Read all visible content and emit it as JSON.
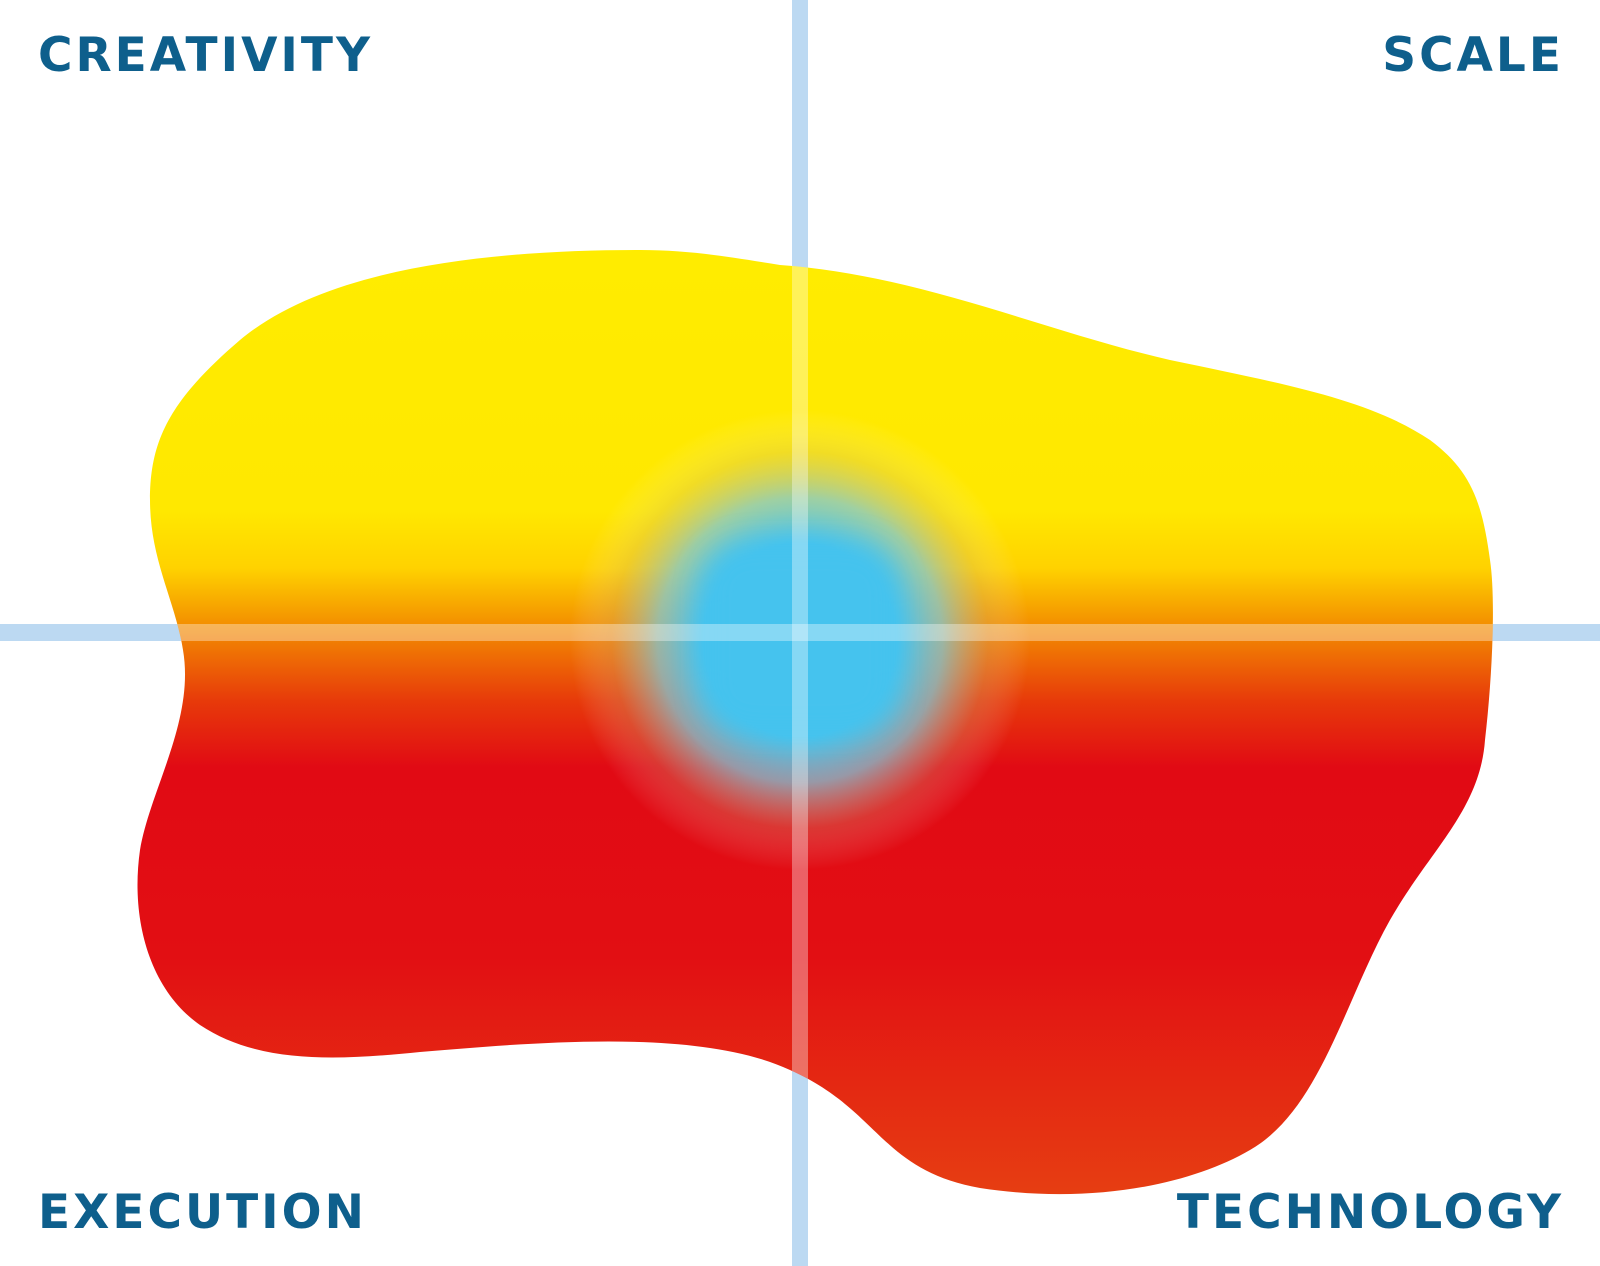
{
  "labels": {
    "top_left": "CREATIVITY",
    "top_right": "SCALE",
    "bottom_left": "EXECUTION",
    "bottom_right": "TECHNOLOGY"
  },
  "colors": {
    "label_text": "#0e5f8c",
    "axis_line": "#bcd9f2",
    "zone_yellow": "#ffec00",
    "zone_orange": "#f59a00",
    "zone_red": "#e10a14",
    "zone_red_orange": "#e63e12",
    "center_blue": "#45c3ee",
    "background": "#ffffff"
  },
  "shapes": {
    "axes": "cross-axes",
    "blob": "heat-blob",
    "center": "center-spot"
  }
}
